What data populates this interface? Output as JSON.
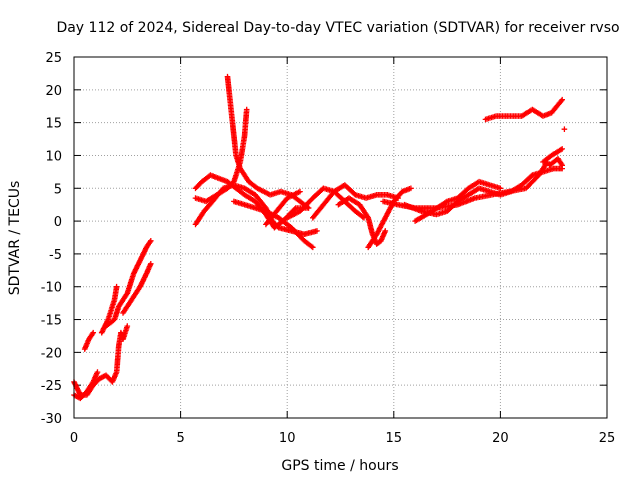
{
  "chart_data": {
    "type": "scatter",
    "title": "Day 112 of 2024, Sidereal Day-to-day VTEC variation (SDTVAR) for receiver rvso",
    "xlabel": "GPS time / hours",
    "ylabel": "SDTVAR / TECUs",
    "xlim": [
      0,
      25
    ],
    "ylim": [
      -30,
      25
    ],
    "x_ticks": [
      0,
      5,
      10,
      15,
      20,
      25
    ],
    "y_ticks": [
      -30,
      -25,
      -20,
      -15,
      -10,
      -5,
      0,
      5,
      10,
      15,
      20,
      25
    ],
    "grid": true,
    "marker": "+",
    "color": "#ff0000",
    "tracks": [
      {
        "name": "early-1",
        "points": [
          [
            0.0,
            -24.5
          ],
          [
            0.3,
            -26.5
          ],
          [
            0.6,
            -26.5
          ],
          [
            0.9,
            -25.0
          ],
          [
            1.2,
            -24.0
          ],
          [
            1.5,
            -23.5
          ],
          [
            1.8,
            -24.5
          ],
          [
            2.0,
            -23.0
          ],
          [
            2.1,
            -19.0
          ],
          [
            2.2,
            -17.0
          ],
          [
            2.3,
            -18.0
          ],
          [
            2.5,
            -16.0
          ]
        ]
      },
      {
        "name": "early-2",
        "points": [
          [
            0.0,
            -26.5
          ],
          [
            0.3,
            -27.0
          ],
          [
            0.6,
            -26.0
          ],
          [
            0.9,
            -24.5
          ],
          [
            1.1,
            -23.0
          ]
        ]
      },
      {
        "name": "early-3",
        "points": [
          [
            0.5,
            -19.5
          ],
          [
            0.7,
            -18.0
          ],
          [
            0.9,
            -17.0
          ]
        ]
      },
      {
        "name": "early-4",
        "points": [
          [
            1.3,
            -17.0
          ],
          [
            1.6,
            -15.0
          ],
          [
            1.9,
            -12.0
          ],
          [
            2.0,
            -10.0
          ]
        ]
      },
      {
        "name": "early-5",
        "points": [
          [
            1.5,
            -16.0
          ],
          [
            1.9,
            -15.0
          ],
          [
            2.1,
            -13.0
          ],
          [
            2.5,
            -11.0
          ],
          [
            2.8,
            -8.0
          ],
          [
            3.1,
            -6.0
          ],
          [
            3.4,
            -4.0
          ],
          [
            3.6,
            -3.0
          ]
        ]
      },
      {
        "name": "early-6",
        "points": [
          [
            2.3,
            -14.0
          ],
          [
            2.7,
            -12.0
          ],
          [
            3.1,
            -10.0
          ],
          [
            3.4,
            -8.0
          ],
          [
            3.6,
            -6.5
          ]
        ]
      },
      {
        "name": "mid-1",
        "points": [
          [
            5.7,
            5.0
          ],
          [
            6.0,
            6.0
          ],
          [
            6.4,
            7.0
          ],
          [
            6.8,
            6.5
          ],
          [
            7.2,
            6.0
          ],
          [
            7.6,
            5.0
          ],
          [
            8.0,
            4.0
          ],
          [
            8.5,
            3.0
          ],
          [
            9.0,
            1.0
          ],
          [
            9.4,
            -1.0
          ],
          [
            9.8,
            0.0
          ],
          [
            10.4,
            2.0
          ],
          [
            11.0,
            2.0
          ]
        ]
      },
      {
        "name": "mid-2",
        "points": [
          [
            5.7,
            3.5
          ],
          [
            6.2,
            3.0
          ],
          [
            6.7,
            4.0
          ],
          [
            7.2,
            5.0
          ],
          [
            7.5,
            6.0
          ],
          [
            7.8,
            9.0
          ],
          [
            8.0,
            13.0
          ],
          [
            8.1,
            17.0
          ]
        ]
      },
      {
        "name": "mid-3",
        "points": [
          [
            7.2,
            22.0
          ],
          [
            7.3,
            19.0
          ],
          [
            7.4,
            16.0
          ],
          [
            7.5,
            13.0
          ],
          [
            7.6,
            10.0
          ],
          [
            7.8,
            8.0
          ],
          [
            8.2,
            6.0
          ],
          [
            8.6,
            5.0
          ],
          [
            9.2,
            4.0
          ],
          [
            9.7,
            4.5
          ],
          [
            10.2,
            4.0
          ],
          [
            10.6,
            3.0
          ],
          [
            11.0,
            2.0
          ]
        ]
      },
      {
        "name": "mid-4",
        "points": [
          [
            5.7,
            -0.5
          ],
          [
            6.1,
            1.5
          ],
          [
            6.5,
            3.0
          ],
          [
            7.0,
            5.0
          ],
          [
            7.5,
            5.5
          ],
          [
            8.0,
            5.0
          ],
          [
            8.5,
            4.0
          ],
          [
            9.0,
            2.0
          ],
          [
            9.3,
            0.0
          ],
          [
            9.6,
            -1.0
          ],
          [
            10.2,
            -1.5
          ],
          [
            10.8,
            -2.0
          ],
          [
            11.4,
            -1.5
          ]
        ]
      },
      {
        "name": "mid-5",
        "points": [
          [
            7.5,
            3.0
          ],
          [
            8.0,
            2.5
          ],
          [
            8.5,
            2.0
          ],
          [
            9.0,
            1.5
          ],
          [
            9.6,
            0.5
          ],
          [
            10.2,
            -1.0
          ],
          [
            10.8,
            -3.0
          ],
          [
            11.2,
            -4.0
          ]
        ]
      },
      {
        "name": "mid-6",
        "points": [
          [
            9.0,
            -0.5
          ],
          [
            9.5,
            1.5
          ],
          [
            10.0,
            3.5
          ],
          [
            10.6,
            4.5
          ]
        ]
      },
      {
        "name": "mid-7",
        "points": [
          [
            10.0,
            0.5
          ],
          [
            10.6,
            1.5
          ],
          [
            11.2,
            3.5
          ],
          [
            11.7,
            5.0
          ],
          [
            12.2,
            4.5
          ],
          [
            12.7,
            3.0
          ],
          [
            13.2,
            1.5
          ],
          [
            13.6,
            0.5
          ]
        ]
      },
      {
        "name": "mid-8",
        "points": [
          [
            11.2,
            0.5
          ],
          [
            11.7,
            2.5
          ],
          [
            12.2,
            4.5
          ],
          [
            12.7,
            5.5
          ],
          [
            13.2,
            4.0
          ],
          [
            13.7,
            3.5
          ],
          [
            14.2,
            4.0
          ],
          [
            14.7,
            4.0
          ],
          [
            15.2,
            3.5
          ]
        ]
      },
      {
        "name": "mid-9",
        "points": [
          [
            12.4,
            2.5
          ],
          [
            12.9,
            3.5
          ],
          [
            13.4,
            2.5
          ],
          [
            13.8,
            0.5
          ],
          [
            14.0,
            -2.0
          ],
          [
            14.2,
            -3.5
          ],
          [
            14.4,
            -3.0
          ],
          [
            14.6,
            -1.5
          ]
        ]
      },
      {
        "name": "mid-10",
        "points": [
          [
            13.8,
            -4.0
          ],
          [
            14.2,
            -2.0
          ],
          [
            14.6,
            0.5
          ],
          [
            15.0,
            3.0
          ],
          [
            15.4,
            4.5
          ],
          [
            15.8,
            5.0
          ]
        ]
      },
      {
        "name": "late-1",
        "points": [
          [
            14.5,
            3.0
          ],
          [
            15.2,
            2.5
          ],
          [
            16.0,
            2.0
          ],
          [
            17.0,
            2.0
          ],
          [
            18.0,
            2.5
          ],
          [
            18.8,
            3.5
          ],
          [
            19.6,
            4.0
          ],
          [
            20.4,
            4.5
          ],
          [
            21.2,
            5.0
          ],
          [
            21.8,
            7.0
          ],
          [
            22.2,
            9.0
          ]
        ]
      },
      {
        "name": "late-2",
        "points": [
          [
            15.5,
            2.5
          ],
          [
            16.3,
            1.5
          ],
          [
            17.0,
            1.0
          ],
          [
            17.5,
            1.5
          ],
          [
            18.0,
            3.0
          ],
          [
            18.5,
            4.0
          ],
          [
            19.0,
            5.0
          ],
          [
            19.5,
            4.5
          ],
          [
            20.0,
            4.0
          ],
          [
            20.5,
            4.5
          ],
          [
            21.0,
            5.5
          ],
          [
            21.5,
            7.0
          ],
          [
            22.0,
            7.5
          ],
          [
            22.5,
            8.0
          ],
          [
            22.9,
            8.0
          ]
        ]
      },
      {
        "name": "late-3",
        "points": [
          [
            16.0,
            0.0
          ],
          [
            16.8,
            1.5
          ],
          [
            17.5,
            3.0
          ],
          [
            18.0,
            3.5
          ],
          [
            18.5,
            5.0
          ],
          [
            19.0,
            6.0
          ],
          [
            19.5,
            5.5
          ],
          [
            20.0,
            5.0
          ]
        ]
      },
      {
        "name": "late-4",
        "points": [
          [
            19.3,
            15.5
          ],
          [
            19.8,
            16.0
          ],
          [
            20.4,
            16.0
          ],
          [
            21.0,
            16.0
          ],
          [
            21.5,
            17.0
          ],
          [
            22.0,
            16.0
          ],
          [
            22.4,
            16.5
          ],
          [
            22.9,
            18.5
          ]
        ]
      },
      {
        "name": "late-5",
        "points": [
          [
            22.0,
            9.0
          ],
          [
            22.4,
            10.0
          ],
          [
            22.9,
            11.0
          ]
        ]
      },
      {
        "name": "late-6",
        "points": [
          [
            22.3,
            8.5
          ],
          [
            22.7,
            9.5
          ],
          [
            22.9,
            8.5
          ]
        ]
      },
      {
        "name": "late-7",
        "points": [
          [
            23.0,
            14.0
          ]
        ]
      }
    ]
  }
}
